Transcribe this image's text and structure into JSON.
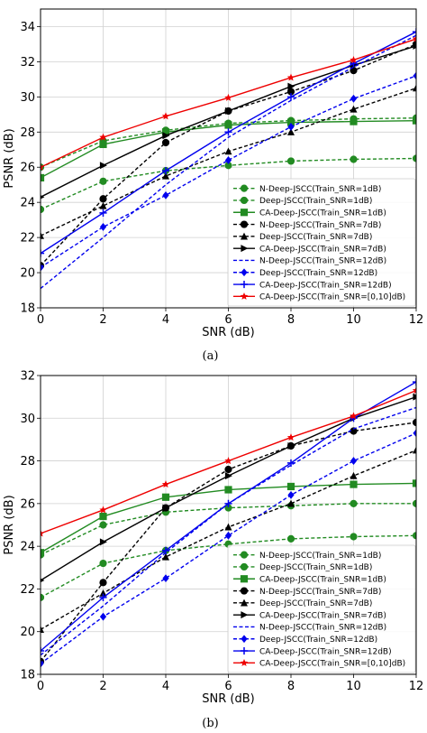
{
  "chart_data": [
    {
      "type": "line",
      "caption": "(a)",
      "xlabel": "SNR (dB)",
      "ylabel": "PSNR (dB)",
      "xlim": [
        0,
        12
      ],
      "ylim": [
        18,
        35
      ],
      "xticks": [
        0,
        2,
        4,
        6,
        8,
        10,
        12
      ],
      "yticks": [
        18,
        20,
        22,
        24,
        26,
        28,
        30,
        32,
        34
      ],
      "grid": true,
      "legend_position": "lower-right",
      "x": [
        0,
        2,
        4,
        6,
        8,
        10,
        12
      ],
      "series": [
        {
          "name": "N-Deep-JSCC(Train_SNR=1dB)",
          "color": "#228B22",
          "dash": "dashed",
          "marker": "circle",
          "values": [
            23.6,
            25.2,
            25.8,
            26.1,
            26.35,
            26.45,
            26.5
          ]
        },
        {
          "name": "Deep-JSCC(Train_SNR=1dB)",
          "color": "#228B22",
          "dash": "dashed",
          "marker": "circle",
          "values": [
            26.0,
            27.5,
            28.1,
            28.5,
            28.65,
            28.75,
            28.8
          ]
        },
        {
          "name": "CA-Deep-JSCC(Train_SNR=1dB)",
          "color": "#228B22",
          "dash": "solid",
          "marker": "square",
          "values": [
            25.4,
            27.3,
            28.0,
            28.4,
            28.55,
            28.6,
            28.65
          ]
        },
        {
          "name": "N-Deep-JSCC(Train_SNR=7dB)",
          "color": "#000000",
          "dash": "dashed",
          "marker": "circle",
          "values": [
            20.4,
            24.2,
            27.4,
            29.2,
            30.3,
            31.5,
            33.0
          ]
        },
        {
          "name": "Deep-JSCC(Train_SNR=7dB)",
          "color": "#000000",
          "dash": "dashed",
          "marker": "triangle-up",
          "values": [
            22.1,
            23.8,
            25.5,
            26.9,
            28.0,
            29.3,
            30.5
          ]
        },
        {
          "name": "CA-Deep-JSCC(Train_SNR=7dB)",
          "color": "#000000",
          "dash": "solid",
          "marker": "triangle-right",
          "values": [
            24.3,
            26.1,
            27.8,
            29.2,
            30.6,
            31.8,
            32.9
          ]
        },
        {
          "name": "N-Deep-JSCC(Train_SNR=12dB)",
          "color": "#0000EE",
          "dash": "dashed",
          "marker": "none",
          "values": [
            19.1,
            22.0,
            25.0,
            27.7,
            29.8,
            31.7,
            33.5
          ]
        },
        {
          "name": "Deep-JSCC(Train_SNR=12dB)",
          "color": "#0000EE",
          "dash": "dashed",
          "marker": "diamond",
          "values": [
            20.3,
            22.6,
            24.4,
            26.4,
            28.3,
            29.9,
            31.2
          ]
        },
        {
          "name": "CA-Deep-JSCC(Train_SNR=12dB)",
          "color": "#0000EE",
          "dash": "solid",
          "marker": "plus",
          "values": [
            21.1,
            23.4,
            25.8,
            28.0,
            30.0,
            31.9,
            33.7
          ]
        },
        {
          "name": "CA-Deep-JSCC(Train_SNR=[0,10]dB)",
          "color": "#EE0000",
          "dash": "solid",
          "marker": "star",
          "values": [
            26.0,
            27.7,
            28.9,
            29.95,
            31.1,
            32.1,
            33.3
          ]
        }
      ]
    },
    {
      "type": "line",
      "caption": "(b)",
      "xlabel": "SNR (dB)",
      "ylabel": "PSNR (dB)",
      "xlim": [
        0,
        12
      ],
      "ylim": [
        18,
        32
      ],
      "xticks": [
        0,
        2,
        4,
        6,
        8,
        10,
        12
      ],
      "yticks": [
        18,
        20,
        22,
        24,
        26,
        28,
        30,
        32
      ],
      "grid": true,
      "legend_position": "lower-right",
      "x": [
        0,
        2,
        4,
        6,
        8,
        10,
        12
      ],
      "series": [
        {
          "name": "N-Deep-JSCC(Train_SNR=1dB)",
          "color": "#228B22",
          "dash": "dashed",
          "marker": "circle",
          "values": [
            21.6,
            23.2,
            23.8,
            24.1,
            24.35,
            24.45,
            24.5
          ]
        },
        {
          "name": "Deep-JSCC(Train_SNR=1dB)",
          "color": "#228B22",
          "dash": "dashed",
          "marker": "circle",
          "values": [
            23.6,
            25.0,
            25.6,
            25.8,
            25.9,
            26.0,
            26.0
          ]
        },
        {
          "name": "CA-Deep-JSCC(Train_SNR=1dB)",
          "color": "#228B22",
          "dash": "solid",
          "marker": "square",
          "values": [
            23.7,
            25.4,
            26.3,
            26.65,
            26.8,
            26.9,
            26.95
          ]
        },
        {
          "name": "N-Deep-JSCC(Train_SNR=7dB)",
          "color": "#000000",
          "dash": "dashed",
          "marker": "circle",
          "values": [
            18.6,
            22.3,
            25.8,
            27.6,
            28.7,
            29.4,
            29.8
          ]
        },
        {
          "name": "Deep-JSCC(Train_SNR=7dB)",
          "color": "#000000",
          "dash": "dashed",
          "marker": "triangle-up",
          "values": [
            20.1,
            21.8,
            23.5,
            24.9,
            26.0,
            27.3,
            28.5
          ]
        },
        {
          "name": "CA-Deep-JSCC(Train_SNR=7dB)",
          "color": "#000000",
          "dash": "solid",
          "marker": "triangle-right",
          "values": [
            22.4,
            24.2,
            25.8,
            27.3,
            28.7,
            30.0,
            31.0
          ]
        },
        {
          "name": "N-Deep-JSCC(Train_SNR=12dB)",
          "color": "#0000EE",
          "dash": "dashed",
          "marker": "none",
          "values": [
            18.9,
            21.2,
            23.7,
            26.0,
            27.8,
            29.5,
            30.5
          ]
        },
        {
          "name": "Deep-JSCC(Train_SNR=12dB)",
          "color": "#0000EE",
          "dash": "dashed",
          "marker": "diamond",
          "values": [
            18.5,
            20.7,
            22.5,
            24.5,
            26.4,
            28.0,
            29.3
          ]
        },
        {
          "name": "CA-Deep-JSCC(Train_SNR=12dB)",
          "color": "#0000EE",
          "dash": "solid",
          "marker": "plus",
          "values": [
            19.1,
            21.6,
            23.8,
            26.0,
            27.9,
            30.0,
            31.7
          ]
        },
        {
          "name": "CA-Deep-JSCC(Train_SNR=[0,10]dB)",
          "color": "#EE0000",
          "dash": "solid",
          "marker": "star",
          "values": [
            24.6,
            25.7,
            26.9,
            28.0,
            29.1,
            30.1,
            31.3
          ]
        }
      ]
    }
  ]
}
